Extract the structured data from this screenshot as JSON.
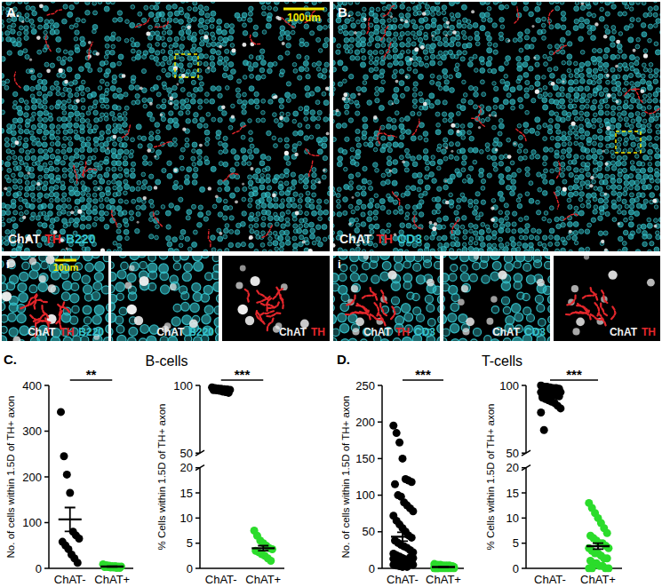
{
  "images": [
    {
      "label": "A.",
      "scale_bar": "100um",
      "stain": [
        {
          "text": "ChAT",
          "color": "#f0f0f0"
        },
        {
          "text": "TH",
          "color": "#e3262b"
        },
        {
          "text": "B220",
          "color": "#35c3cc"
        }
      ],
      "inset_label": "i",
      "inset_scale_bar": "10um",
      "insets": [
        [
          {
            "text": "ChAT",
            "color": "#f0f0f0"
          },
          {
            "text": "TH",
            "color": "#e3262b"
          },
          {
            "text": "B220",
            "color": "#35c3cc"
          }
        ],
        [
          {
            "text": "ChAT",
            "color": "#f0f0f0"
          },
          {
            "text": "B220",
            "color": "#35c3cc"
          }
        ],
        [
          {
            "text": "ChAT",
            "color": "#f0f0f0"
          },
          {
            "text": "TH",
            "color": "#e3262b"
          }
        ]
      ]
    },
    {
      "label": "B.",
      "stain": [
        {
          "text": "ChAT",
          "color": "#f0f0f0"
        },
        {
          "text": "TH",
          "color": "#e3262b"
        },
        {
          "text": "CD3",
          "color": "#35c3cc"
        }
      ],
      "inset_label": "i",
      "insets": [
        [
          {
            "text": "ChAT",
            "color": "#f0f0f0"
          },
          {
            "text": "TH",
            "color": "#e3262b"
          },
          {
            "text": "CD3",
            "color": "#35c3cc"
          }
        ],
        [
          {
            "text": "ChAT",
            "color": "#f0f0f0"
          },
          {
            "text": "CD3",
            "color": "#35c3cc"
          }
        ],
        [
          {
            "text": "ChAT",
            "color": "#f0f0f0"
          },
          {
            "text": "TH",
            "color": "#e3262b"
          }
        ]
      ]
    }
  ],
  "chart_data": [
    {
      "type": "strip",
      "panel": "C.",
      "title": "B-cells",
      "ylabel": "No. of cells within 1.5D of TH+ axon",
      "categories": [
        "ChAT-",
        "ChAT+"
      ],
      "colors": [
        "#000000",
        "#2bdc2b"
      ],
      "values": [
        [
          342,
          245,
          205,
          165,
          80,
          72,
          65,
          58,
          50,
          42,
          30,
          22,
          12
        ],
        [
          9,
          7,
          6,
          5,
          5,
          4,
          4,
          3,
          3,
          2,
          2,
          1,
          1
        ]
      ],
      "mean": [
        107,
        4
      ],
      "sem": [
        26,
        0.8
      ],
      "significance": "**",
      "ylim": [
        0,
        400
      ],
      "yticks": [
        0,
        100,
        200,
        300,
        400
      ]
    },
    {
      "type": "strip",
      "ylabel": "% Cells within 1.5D of TH+ axon",
      "categories": [
        "ChAT-",
        "ChAT+"
      ],
      "colors": [
        "#000000",
        "#2bdc2b"
      ],
      "values": [
        [
          98.5,
          98,
          97.8,
          97.5,
          97.2,
          97,
          96.8,
          96.5,
          96.3,
          96,
          95.5,
          95,
          94.5
        ],
        [
          7.5,
          6.5,
          5.5,
          5,
          4.5,
          4,
          3.8,
          3.5,
          3.2,
          2.8,
          2.5,
          2,
          1.5
        ]
      ],
      "mean": [
        96.7,
        4
      ],
      "sem": [
        0.35,
        0.5
      ],
      "significance": "***",
      "ylim": [
        0,
        100
      ],
      "ybreak": [
        20,
        50
      ],
      "yticks": [
        0,
        5,
        10,
        15,
        20,
        50,
        100
      ]
    },
    {
      "type": "strip",
      "panel": "D.",
      "title": "T-cells",
      "ylabel": "No. of cells within 1.5D of TH+ axon",
      "categories": [
        "ChAT-",
        "ChAT+"
      ],
      "colors": [
        "#000000",
        "#2bdc2b"
      ],
      "values": [
        [
          195,
          185,
          172,
          150,
          122,
          120,
          118,
          115,
          100,
          98,
          90,
          86,
          82,
          78,
          72,
          65,
          60,
          55,
          50,
          45,
          42,
          38,
          35,
          32,
          30,
          28,
          25,
          22,
          20,
          18,
          16,
          14,
          12,
          10,
          8,
          6,
          5,
          4,
          3,
          2,
          15,
          14,
          13,
          12,
          11,
          10,
          10,
          9,
          9,
          8,
          8,
          7,
          7,
          6,
          6,
          5,
          5,
          4,
          3,
          2
        ],
        [
          6,
          5,
          5,
          4,
          4,
          4,
          3,
          3,
          3,
          3,
          2,
          2,
          2,
          2,
          2,
          1,
          1,
          1,
          1,
          1,
          1,
          0,
          0,
          0,
          0,
          0,
          0,
          0,
          0,
          0
        ]
      ],
      "mean": [
        43.2,
        1.9
      ],
      "sem": [
        6,
        0.3
      ],
      "significance": "***",
      "ylim": [
        0,
        250
      ],
      "yticks": [
        0,
        50,
        100,
        150,
        200,
        250
      ]
    },
    {
      "type": "strip",
      "ylabel": "% Cells within 1.5D of TH+ axon",
      "categories": [
        "ChAT-",
        "ChAT+"
      ],
      "colors": [
        "#000000",
        "#2bdc2b"
      ],
      "values": [
        [
          100,
          99,
          99,
          98.5,
          98,
          98,
          97.5,
          97,
          97,
          96.5,
          96,
          96,
          95.5,
          95,
          95,
          94.5,
          94,
          93.5,
          93,
          92.5,
          92,
          91,
          90,
          89,
          88,
          87,
          85,
          83,
          80,
          67
        ],
        [
          13,
          12,
          11,
          10,
          9,
          8,
          7,
          6.5,
          6,
          5.5,
          5,
          5,
          4.5,
          4,
          4,
          3.5,
          3,
          3,
          2.5,
          2,
          2,
          1.5,
          1,
          1,
          0.5,
          0.5,
          0,
          0,
          0,
          0
        ]
      ],
      "mean": [
        92.5,
        4.4
      ],
      "sem": [
        1.2,
        0.6
      ],
      "significance": "***",
      "ylim": [
        0,
        100
      ],
      "ybreak": [
        20,
        50
      ],
      "yticks": [
        0,
        5,
        10,
        15,
        20,
        50,
        100
      ]
    }
  ]
}
